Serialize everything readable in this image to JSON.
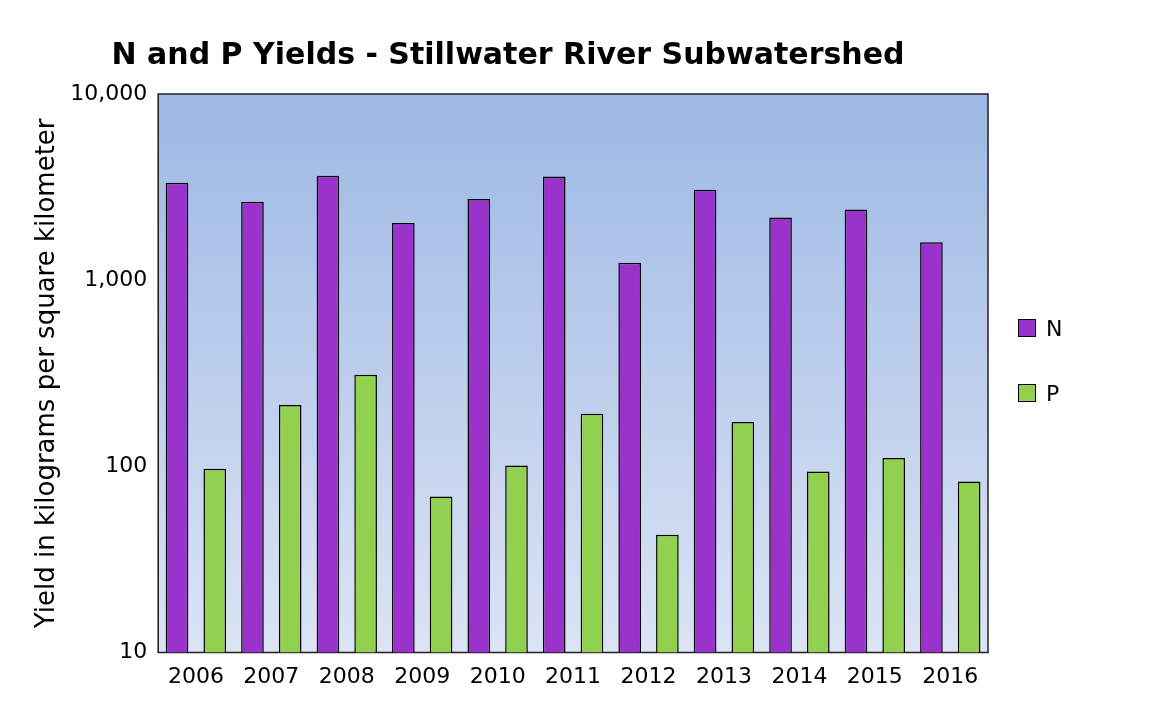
{
  "chart_data": {
    "type": "bar",
    "title": "N and P Yields - Stillwater River Subwatershed",
    "ylabel": "Yield in kilograms per square kilometer",
    "categories": [
      "2006",
      "2007",
      "2008",
      "2009",
      "2010",
      "2011",
      "2012",
      "2013",
      "2014",
      "2015",
      "2016"
    ],
    "series": [
      {
        "name": "N",
        "color": "#9933cc",
        "values": [
          3340,
          2640,
          3640,
          2030,
          2730,
          3600,
          1240,
          3060,
          2170,
          2400,
          1600
        ]
      },
      {
        "name": "P",
        "color": "#92d050",
        "values": [
          97,
          214,
          311,
          69,
          101,
          192,
          43,
          173,
          94,
          111,
          83
        ]
      }
    ],
    "log": "y",
    "ylim": [
      10,
      10000
    ],
    "yticks": [
      10,
      100,
      {
        "value": 1000,
        "label": "1,000"
      },
      {
        "value": 10000,
        "label": "10,000"
      }
    ],
    "grid": false,
    "legend": "right"
  }
}
